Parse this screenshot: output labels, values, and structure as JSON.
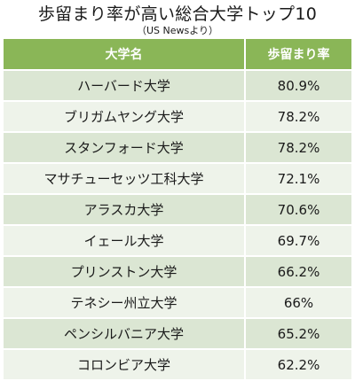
{
  "title": "歩留まり率が高い総合大学トップ10",
  "subtitle": "（US Newsより）",
  "table": {
    "headers": [
      "大学名",
      "歩留まり率"
    ],
    "rows": [
      [
        "ハーバード大学",
        "80.9%"
      ],
      [
        "ブリガムヤング大学",
        "78.2%"
      ],
      [
        "スタンフォード大学",
        "78.2%"
      ],
      [
        "マサチューセッツ工科大学",
        "72.1%"
      ],
      [
        "アラスカ大学",
        "70.6%"
      ],
      [
        "イェール大学",
        "69.7%"
      ],
      [
        "プリンストン大学",
        "66.2%"
      ],
      [
        "テネシー州立大学",
        "66%"
      ],
      [
        "ペンシルバニア大学",
        "65.2%"
      ],
      [
        "コロンビア大学",
        "62.2%"
      ]
    ]
  },
  "colors": {
    "header_bg": "#8ab657",
    "row_odd_bg": "#dbe6d3",
    "row_even_bg": "#eef3ea"
  }
}
